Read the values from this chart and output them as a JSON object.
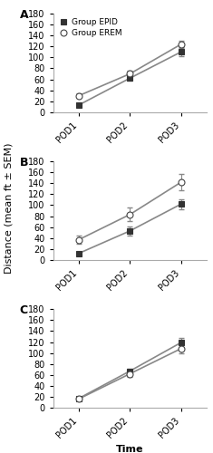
{
  "panels": [
    {
      "label": "A",
      "epid": {
        "means": [
          13,
          62,
          110
        ],
        "sems": [
          3,
          5,
          7
        ]
      },
      "erem": {
        "means": [
          30,
          70,
          124
        ],
        "sems": [
          4,
          5,
          6
        ]
      }
    },
    {
      "label": "B",
      "epid": {
        "means": [
          12,
          53,
          102
        ],
        "sems": [
          2,
          8,
          9
        ]
      },
      "erem": {
        "means": [
          37,
          83,
          142
        ],
        "sems": [
          7,
          12,
          15
        ]
      }
    },
    {
      "label": "C",
      "epid": {
        "means": [
          17,
          67,
          119
        ],
        "sems": [
          3,
          5,
          8
        ]
      },
      "erem": {
        "means": [
          16,
          62,
          108
        ],
        "sems": [
          3,
          5,
          8
        ]
      }
    }
  ],
  "xticklabels": [
    "POD1",
    "POD2",
    "POD3"
  ],
  "ylim": [
    0,
    180
  ],
  "yticks": [
    0,
    20,
    40,
    60,
    80,
    100,
    120,
    140,
    160,
    180
  ],
  "legend_labels": [
    "Group EPID",
    "Group EREM"
  ],
  "ylabel": "Distance (mean ft ± SEM)",
  "xlabel": "Time",
  "line_color": "#888888",
  "epid_marker": "s",
  "erem_marker": "o",
  "epid_markerfacecolor": "#333333",
  "erem_markerfacecolor": "white",
  "epid_markeredgecolor": "#333333",
  "erem_markeredgecolor": "#444444",
  "markersize": 5,
  "linewidth": 1.2,
  "capsize": 2,
  "elinewidth": 0.8,
  "panel_label_fontsize": 9,
  "tick_fontsize": 7,
  "legend_fontsize": 6.5,
  "axis_label_fontsize": 8
}
